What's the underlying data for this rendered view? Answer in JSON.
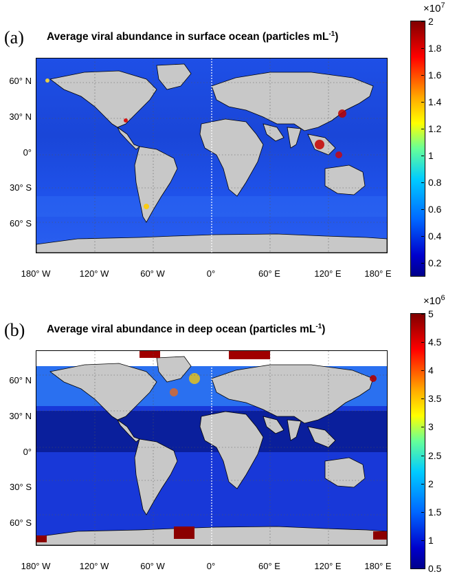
{
  "panels": [
    {
      "letter": "(a)",
      "title": "Average viral abundance in surface ocean (particles mL",
      "title_sup": "-1",
      "title_end": ")",
      "colorbar": {
        "multiplier": "×10",
        "exponent": "7",
        "ticks": [
          "2",
          "1.8",
          "1.6",
          "1.4",
          "1.2",
          "1",
          "0.8",
          "0.6",
          "0.4",
          "0.2"
        ],
        "min": 0.1,
        "max": 2.0
      }
    },
    {
      "letter": "(b)",
      "title": "Average viral abundance in deep ocean (particles mL",
      "title_sup": "-1",
      "title_end": ")",
      "colorbar": {
        "multiplier": "×10",
        "exponent": "6",
        "ticks": [
          "5",
          "4.5",
          "4",
          "3.5",
          "3",
          "2.5",
          "2",
          "1.5",
          "1",
          "0.5"
        ],
        "min": 0.5,
        "max": 5.0
      }
    }
  ],
  "y_labels": [
    "60° N",
    "30° N",
    "0°",
    "30° S",
    "60° S"
  ],
  "x_labels": [
    "180° W",
    "120° W",
    "60° W",
    "0°",
    "60° E",
    "120° E",
    "180° E"
  ],
  "colors": {
    "ocean_low": "#0a1f9c",
    "ocean_mid": "#1d4fe0",
    "land": "#c8c8c8",
    "high": "#8b0000"
  }
}
